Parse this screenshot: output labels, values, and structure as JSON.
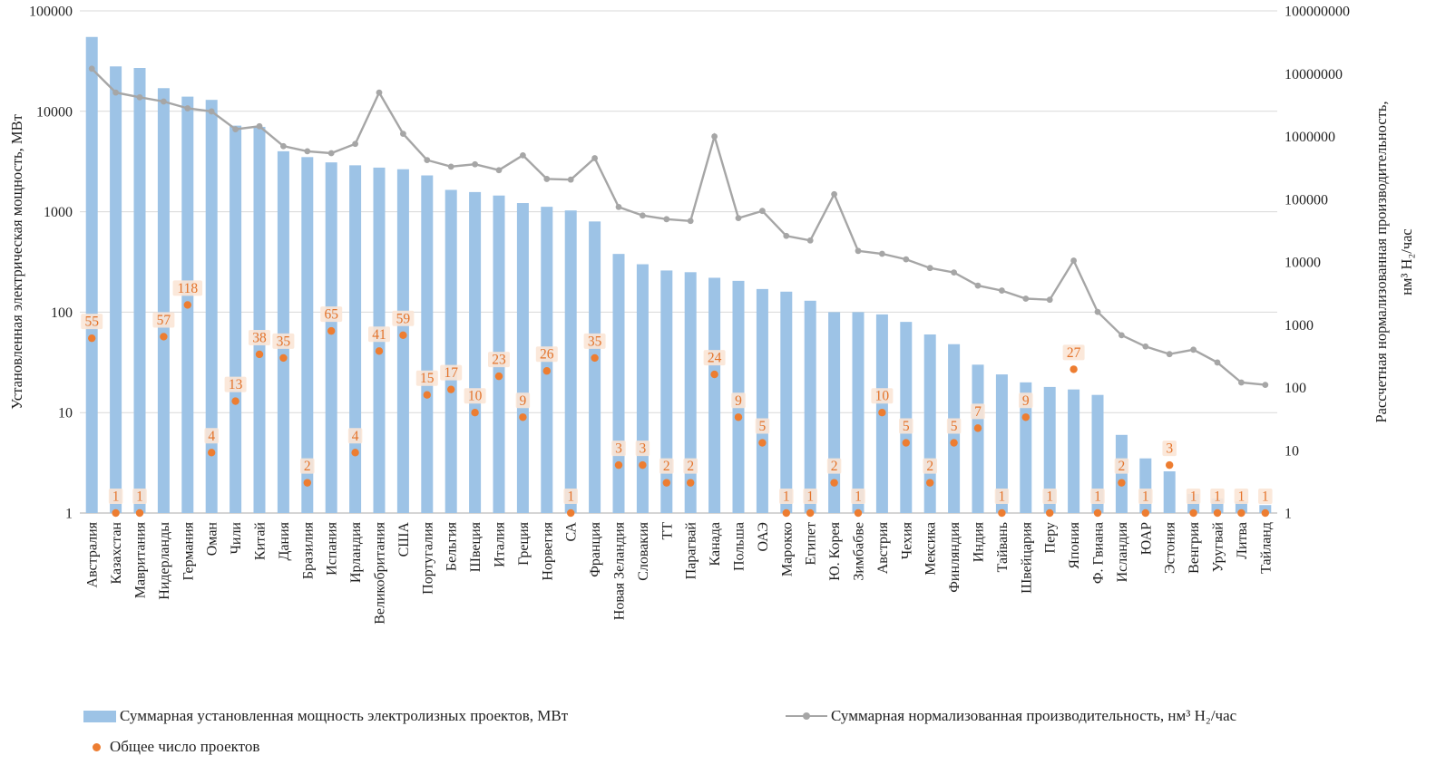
{
  "legend": {
    "bars": "Суммарная установленная мощность электролизных проектов, МВт",
    "line": "Суммарная нормализованная производительность, нм³ Н₂/час",
    "dots": "Общее число проектов"
  },
  "axes": {
    "left_label": "Установленная электрическая мощность, МВт",
    "right_label": "Рассчетная нормализованная производительность, нм³ Н₂/час",
    "right_label_line1": "Рассчетная нормализованная производительность,",
    "right_label_line2": "нм³ Н₂/час",
    "left_ticks": [
      "1",
      "10",
      "100",
      "1000",
      "10000",
      "100000"
    ],
    "right_ticks": [
      "1",
      "10",
      "100",
      "1000",
      "10000",
      "100000",
      "1000000",
      "10000000",
      "100000000"
    ]
  },
  "colors": {
    "bar": "#9DC3E6",
    "line": "#A6A6A6",
    "dot": "#ED7D31",
    "dot_label": "#e4732a",
    "dot_label_bg": "#FBE5D6",
    "grid": "#D9D9D9",
    "axis_line": "#ABABAB"
  },
  "chart_data": {
    "type": "bar+line+scatter",
    "title": "",
    "xlabel": "",
    "left_axis": {
      "scale": "log",
      "min": 1,
      "max": 100000,
      "label": "Установленная электрическая мощность, МВт"
    },
    "right_axis": {
      "scale": "log",
      "min": 1,
      "max": 100000000,
      "label": "Рассчетная нормализованная производительность, нм³ Н₂/час"
    },
    "grid": "horizontal",
    "legend_position": "bottom-left",
    "categories": [
      "Австралия",
      "Казахстан",
      "Мавритания",
      "Нидерланды",
      "Германия",
      "Оман",
      "Чили",
      "Китай",
      "Дания",
      "Бразилия",
      "Испания",
      "Ирландия",
      "Великобритания",
      "США",
      "Португалия",
      "Бельгия",
      "Швеция",
      "Италия",
      "Греция",
      "Норвегия",
      "СА",
      "Франция",
      "Новая Зеландия",
      "Словакия",
      "ТТ",
      "Парагвай",
      "Канада",
      "Польша",
      "ОАЭ",
      "Марокко",
      "Египет",
      "Ю. Корея",
      "Зимбабве",
      "Австрия",
      "Чехия",
      "Мексика",
      "Финляндия",
      "Индия",
      "Тайвань",
      "Швейцария",
      "Перу",
      "Япония",
      "Ф. Гвиана",
      "Исландия",
      "ЮАР",
      "Эстония",
      "Венгрия",
      "Уругвай",
      "Литва",
      "Тайланд"
    ],
    "series": [
      {
        "name": "Суммарная установленная мощность электролизных проектов, МВт",
        "type": "bar",
        "axis": "left",
        "values": [
          55000,
          28000,
          27000,
          17000,
          14000,
          13000,
          7200,
          7000,
          4000,
          3500,
          3100,
          2900,
          2750,
          2650,
          2300,
          1650,
          1570,
          1450,
          1220,
          1120,
          1030,
          800,
          380,
          300,
          260,
          250,
          220,
          205,
          170,
          160,
          130,
          100,
          100,
          95,
          80,
          60,
          48,
          30,
          24,
          20,
          18,
          17,
          15,
          6,
          3.5,
          2.6,
          1.55,
          1.4,
          1.3,
          1.2
        ]
      },
      {
        "name": "Суммарная нормализованная производительность, нм³ Н₂/час",
        "type": "line",
        "axis": "right",
        "values": [
          12000000,
          5000000,
          4200000,
          3600000,
          2800000,
          2500000,
          1300000,
          1450000,
          700000,
          580000,
          540000,
          760000,
          5000000,
          1100000,
          420000,
          330000,
          360000,
          290000,
          500000,
          210000,
          205000,
          450000,
          75000,
          55000,
          48000,
          45000,
          1000000,
          50000,
          65000,
          26000,
          22000,
          120000,
          15000,
          13500,
          11000,
          8000,
          6800,
          4200,
          3500,
          2600,
          2500,
          10500,
          1600,
          680,
          450,
          340,
          400,
          250,
          120,
          110
        ]
      },
      {
        "name": "Общее число проектов",
        "type": "scatter-labeled",
        "axis": "left",
        "values": [
          55,
          1,
          1,
          57,
          118,
          4,
          13,
          38,
          35,
          2,
          65,
          4,
          41,
          59,
          15,
          17,
          10,
          23,
          9,
          26,
          1,
          35,
          3,
          3,
          2,
          2,
          24,
          9,
          5,
          1,
          1,
          2,
          1,
          10,
          5,
          2,
          5,
          7,
          1,
          9,
          1,
          27,
          1,
          2,
          1,
          3,
          1,
          1,
          1,
          1
        ]
      }
    ]
  }
}
